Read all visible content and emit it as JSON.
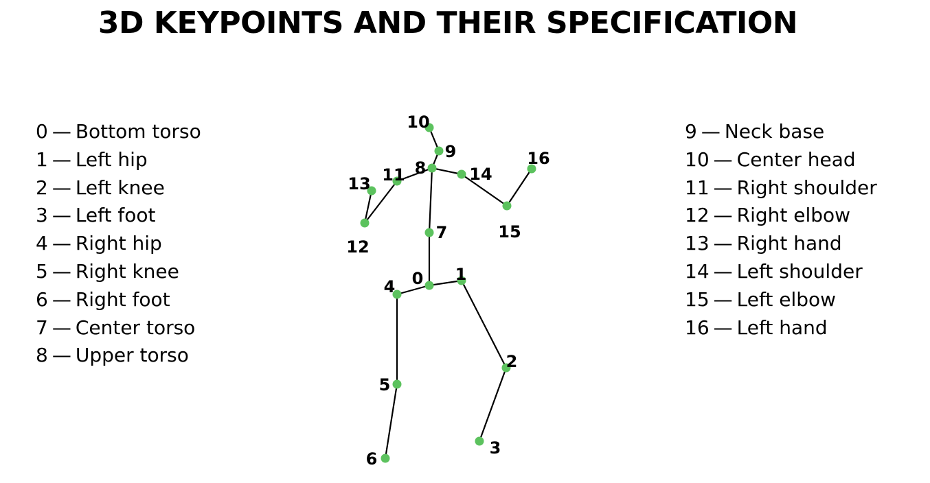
{
  "title": "3D KEYPOINTS AND THEIR SPECIFICATION",
  "separator": "—",
  "joint_color": "#5cc25e",
  "keypoints": [
    {
      "id": "0",
      "name": "Bottom torso"
    },
    {
      "id": "1",
      "name": "Left hip"
    },
    {
      "id": "2",
      "name": "Left knee"
    },
    {
      "id": "3",
      "name": "Left foot"
    },
    {
      "id": "4",
      "name": "Right hip"
    },
    {
      "id": "5",
      "name": "Right knee"
    },
    {
      "id": "6",
      "name": "Right foot"
    },
    {
      "id": "7",
      "name": "Center torso"
    },
    {
      "id": "8",
      "name": "Upper torso"
    },
    {
      "id": "9",
      "name": "Neck base"
    },
    {
      "id": "10",
      "name": "Center head"
    },
    {
      "id": "11",
      "name": "Right shoulder"
    },
    {
      "id": "12",
      "name": "Right elbow"
    },
    {
      "id": "13",
      "name": "Right hand"
    },
    {
      "id": "14",
      "name": "Left shoulder"
    },
    {
      "id": "15",
      "name": "Left elbow"
    },
    {
      "id": "16",
      "name": "Left hand"
    }
  ],
  "connections": [
    [
      "0",
      "1"
    ],
    [
      "1",
      "2"
    ],
    [
      "2",
      "3"
    ],
    [
      "0",
      "4"
    ],
    [
      "4",
      "5"
    ],
    [
      "5",
      "6"
    ],
    [
      "0",
      "7"
    ],
    [
      "7",
      "8"
    ],
    [
      "8",
      "9"
    ],
    [
      "9",
      "10"
    ],
    [
      "8",
      "11"
    ],
    [
      "11",
      "12"
    ],
    [
      "12",
      "13"
    ],
    [
      "8",
      "14"
    ],
    [
      "14",
      "15"
    ],
    [
      "15",
      "16"
    ]
  ]
}
